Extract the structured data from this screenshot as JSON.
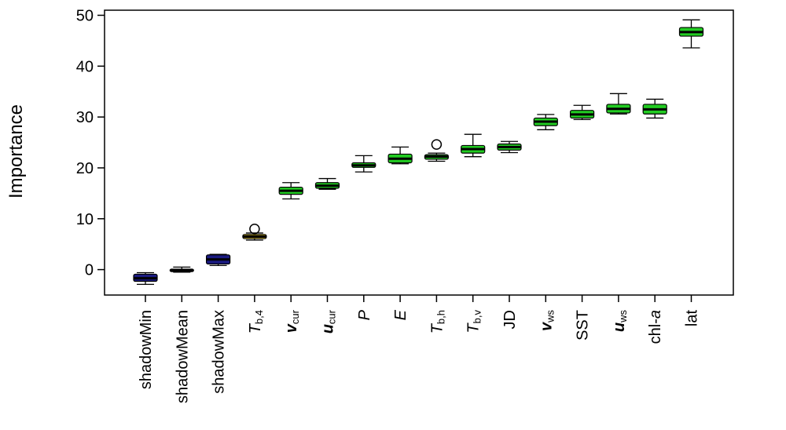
{
  "chart_data": {
    "type": "box",
    "ylabel": "Importance",
    "ylim": [
      -5,
      51
    ],
    "y_ticks": [
      0,
      10,
      20,
      30,
      40,
      50
    ],
    "y_tick_labels": [
      "0",
      "10",
      "20",
      "30",
      "40",
      "50"
    ],
    "grid": false,
    "categories": [
      {
        "label": "shadowMin"
      },
      {
        "label": "shadowMean"
      },
      {
        "label": "shadowMax"
      },
      {
        "base": "T",
        "sub": "b,4",
        "italic": true
      },
      {
        "base": "v",
        "sub": "cur",
        "italic": true,
        "bold": true
      },
      {
        "base": "u",
        "sub": "cur",
        "italic": true,
        "bold": true
      },
      {
        "label": "P",
        "italic": true
      },
      {
        "label": "E",
        "italic": true
      },
      {
        "base": "T",
        "sub": "b,h",
        "italic": true
      },
      {
        "base": "T",
        "sub": "b,v",
        "italic": true
      },
      {
        "label": "JD"
      },
      {
        "base": "v",
        "sub": "ws",
        "italic": true,
        "bold": true
      },
      {
        "label": "SST"
      },
      {
        "base": "u",
        "sub": "ws",
        "italic": true,
        "bold": true
      },
      {
        "label": "chl-",
        "suffix": "a",
        "suffix_italic": true
      },
      {
        "label": "lat"
      }
    ],
    "boxes": [
      {
        "min": -2.9,
        "q1": -2.3,
        "median": -1.7,
        "q3": -0.9,
        "max": -0.6,
        "color": "#1a1a80",
        "outliers": []
      },
      {
        "min": -0.5,
        "q1": -0.4,
        "median": -0.15,
        "q3": 0.1,
        "max": 0.5,
        "color": "#1a1a80",
        "outliers": []
      },
      {
        "min": 0.8,
        "q1": 1.1,
        "median": 2.0,
        "q3": 2.9,
        "max": 3.0,
        "color": "#1a1a80",
        "outliers": []
      },
      {
        "min": 5.8,
        "q1": 6.1,
        "median": 6.5,
        "q3": 6.9,
        "max": 7.2,
        "color": "#ffd800",
        "outliers": [
          8.0
        ]
      },
      {
        "min": 13.9,
        "q1": 14.8,
        "median": 15.5,
        "q3": 16.2,
        "max": 17.1,
        "color": "#22cc22",
        "outliers": []
      },
      {
        "min": 15.8,
        "q1": 16.0,
        "median": 16.5,
        "q3": 17.1,
        "max": 17.9,
        "color": "#22cc22",
        "outliers": []
      },
      {
        "min": 19.2,
        "q1": 20.1,
        "median": 20.5,
        "q3": 21.0,
        "max": 22.4,
        "color": "#22cc22",
        "outliers": []
      },
      {
        "min": 20.8,
        "q1": 21.0,
        "median": 21.8,
        "q3": 22.7,
        "max": 24.1,
        "color": "#22cc22",
        "outliers": []
      },
      {
        "min": 21.3,
        "q1": 21.7,
        "median": 22.2,
        "q3": 22.6,
        "max": 22.9,
        "color": "#22cc22",
        "outliers": [
          24.6
        ]
      },
      {
        "min": 22.2,
        "q1": 22.9,
        "median": 23.7,
        "q3": 24.4,
        "max": 26.6,
        "color": "#22cc22",
        "outliers": []
      },
      {
        "min": 23.0,
        "q1": 23.5,
        "median": 24.1,
        "q3": 24.7,
        "max": 25.2,
        "color": "#22cc22",
        "outliers": []
      },
      {
        "min": 27.5,
        "q1": 28.3,
        "median": 29.1,
        "q3": 29.8,
        "max": 30.5,
        "color": "#22cc22",
        "outliers": []
      },
      {
        "min": 29.5,
        "q1": 29.8,
        "median": 30.5,
        "q3": 31.3,
        "max": 32.3,
        "color": "#22cc22",
        "outliers": []
      },
      {
        "min": 30.6,
        "q1": 30.8,
        "median": 31.6,
        "q3": 32.5,
        "max": 34.6,
        "color": "#22cc22",
        "outliers": []
      },
      {
        "min": 29.8,
        "q1": 30.6,
        "median": 31.5,
        "q3": 32.5,
        "max": 33.5,
        "color": "#22cc22",
        "outliers": []
      },
      {
        "min": 43.6,
        "q1": 45.9,
        "median": 46.7,
        "q3": 47.6,
        "max": 49.1,
        "color": "#22cc22",
        "outliers": []
      }
    ]
  }
}
